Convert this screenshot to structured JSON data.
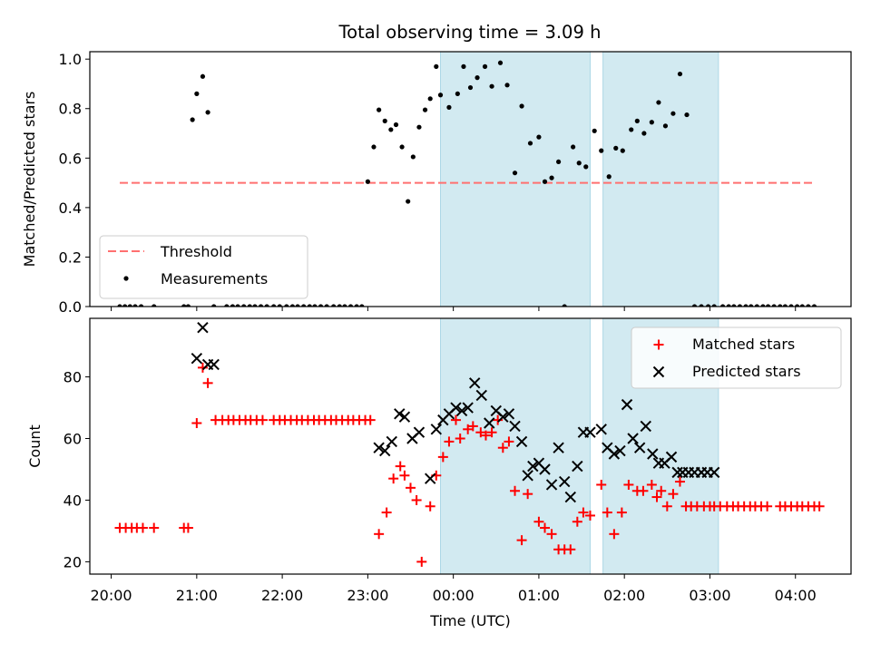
{
  "title": "Total observing time = 3.09 h",
  "colors": {
    "measurement": "#000000",
    "threshold": "#ff7070",
    "matched": "#ff0000",
    "predicted": "#000000",
    "shade": "#add8e6"
  },
  "chart_data": [
    {
      "type": "scatter",
      "ylabel": "Matched/Predicted stars",
      "xlim": [
        -0.25,
        8.65
      ],
      "ylim": [
        0.0,
        1.03
      ],
      "yticks": [
        "0.0",
        "0.2",
        "0.4",
        "0.6",
        "0.8",
        "1.0"
      ],
      "ytick_values": [
        0.0,
        0.2,
        0.4,
        0.6,
        0.8,
        1.0
      ],
      "legend": {
        "placement": "lower-left",
        "entries": [
          {
            "label": "Threshold",
            "style": "dashed-line"
          },
          {
            "label": "Measurements",
            "style": "dot"
          }
        ]
      },
      "threshold": {
        "y": 0.5,
        "x_start": 0.1,
        "x_end": 8.2
      },
      "shaded_regions": [
        [
          3.85,
          5.6
        ],
        [
          5.75,
          7.1
        ]
      ],
      "series": [
        {
          "name": "Measurements",
          "x": [
            0.1,
            0.16,
            0.22,
            0.28,
            0.35,
            0.5,
            0.85,
            0.9,
            0.95,
            1.0,
            1.07,
            1.13,
            1.2,
            1.35,
            1.42,
            1.48,
            1.55,
            1.62,
            1.68,
            1.75,
            1.82,
            1.9,
            1.97,
            2.05,
            2.12,
            2.18,
            2.25,
            2.32,
            2.38,
            2.45,
            2.52,
            2.6,
            2.67,
            2.73,
            2.8,
            2.87,
            2.93,
            3.0,
            3.07,
            3.13,
            3.2,
            3.27,
            3.33,
            3.4,
            3.47,
            3.53,
            3.6,
            3.67,
            3.73,
            3.8,
            3.85,
            3.95,
            4.05,
            4.12,
            4.2,
            4.28,
            4.37,
            4.45,
            4.55,
            4.63,
            4.72,
            4.8,
            4.9,
            5.0,
            5.07,
            5.15,
            5.23,
            5.3,
            5.4,
            5.47,
            5.55,
            5.65,
            5.73,
            5.82,
            5.9,
            5.98,
            6.08,
            6.15,
            6.23,
            6.32,
            6.4,
            6.48,
            6.57,
            6.65,
            6.73,
            6.82,
            6.9,
            6.98,
            7.05,
            7.15,
            7.22,
            7.28,
            7.35,
            7.42,
            7.48,
            7.55,
            7.62,
            7.68,
            7.75,
            7.82,
            7.88,
            7.95,
            8.02,
            8.08,
            8.15,
            8.22
          ],
          "y": [
            0,
            0,
            0,
            0,
            0,
            0,
            0,
            0,
            0.755,
            0.86,
            0.93,
            0.785,
            0,
            0,
            0,
            0,
            0,
            0,
            0,
            0,
            0,
            0,
            0,
            0,
            0,
            0,
            0,
            0,
            0,
            0,
            0,
            0,
            0,
            0,
            0,
            0,
            0,
            0.505,
            0.645,
            0.795,
            0.75,
            0.715,
            0.735,
            0.645,
            0.425,
            0.605,
            0.725,
            0.795,
            0.84,
            0.97,
            0.855,
            0.805,
            0.86,
            0.97,
            0.885,
            0.925,
            0.97,
            0.89,
            0.985,
            0.895,
            0.54,
            0.81,
            0.66,
            0.685,
            0.505,
            0.52,
            0.585,
            0,
            0.645,
            0.58,
            0.565,
            0.71,
            0.63,
            0.525,
            0.64,
            0.63,
            0.715,
            0.75,
            0.7,
            0.745,
            0.825,
            0.73,
            0.78,
            0.94,
            0.775,
            0,
            0,
            0,
            0,
            0,
            0,
            0,
            0,
            0,
            0,
            0,
            0,
            0,
            0,
            0,
            0,
            0,
            0,
            0,
            0,
            0
          ]
        }
      ]
    },
    {
      "type": "scatter",
      "xlabel": "Time (UTC)",
      "ylabel": "Count",
      "xlim": [
        -0.25,
        8.65
      ],
      "ylim": [
        16,
        99
      ],
      "xticks": [
        "20:00",
        "21:00",
        "22:00",
        "23:00",
        "00:00",
        "01:00",
        "02:00",
        "03:00",
        "04:00"
      ],
      "xtick_values": [
        0,
        1,
        2,
        3,
        4,
        5,
        6,
        7,
        8
      ],
      "yticks": [
        "20",
        "40",
        "60",
        "80"
      ],
      "ytick_values": [
        20,
        40,
        60,
        80
      ],
      "legend": {
        "placement": "upper-right",
        "entries": [
          {
            "label": "Matched stars",
            "style": "plus"
          },
          {
            "label": "Predicted stars",
            "style": "x"
          }
        ]
      },
      "shaded_regions": [
        [
          3.85,
          5.6
        ],
        [
          5.75,
          7.1
        ]
      ],
      "series": [
        {
          "name": "Matched stars",
          "x": [
            0.1,
            0.17,
            0.24,
            0.3,
            0.37,
            0.5,
            0.85,
            0.9,
            1.0,
            1.07,
            1.13,
            1.22,
            1.3,
            1.37,
            1.43,
            1.5,
            1.57,
            1.63,
            1.7,
            1.77,
            1.9,
            1.97,
            2.03,
            2.1,
            2.17,
            2.23,
            2.3,
            2.37,
            2.43,
            2.5,
            2.57,
            2.63,
            2.7,
            2.77,
            2.83,
            2.9,
            2.97,
            3.03,
            3.13,
            3.22,
            3.3,
            3.38,
            3.43,
            3.5,
            3.57,
            3.63,
            3.73,
            3.8,
            3.88,
            3.95,
            4.03,
            4.08,
            4.17,
            4.23,
            4.32,
            4.38,
            4.45,
            4.52,
            4.58,
            4.65,
            4.72,
            4.8,
            4.87,
            5.0,
            5.07,
            5.15,
            5.23,
            5.3,
            5.37,
            5.45,
            5.52,
            5.6,
            5.73,
            5.8,
            5.88,
            5.97,
            6.05,
            6.15,
            6.22,
            6.32,
            6.38,
            6.43,
            6.5,
            6.57,
            6.65,
            6.72,
            6.78,
            6.85,
            6.93,
            7.0,
            7.05,
            7.12,
            7.2,
            7.27,
            7.33,
            7.4,
            7.47,
            7.53,
            7.6,
            7.67,
            7.82,
            7.88,
            7.95,
            8.02,
            8.08,
            8.15,
            8.22,
            8.28
          ],
          "y": [
            31,
            31,
            31,
            31,
            31,
            31,
            31,
            31,
            65,
            83,
            78,
            66,
            66,
            66,
            66,
            66,
            66,
            66,
            66,
            66,
            66,
            66,
            66,
            66,
            66,
            66,
            66,
            66,
            66,
            66,
            66,
            66,
            66,
            66,
            66,
            66,
            66,
            66,
            29,
            36,
            47,
            51,
            48,
            44,
            40,
            20,
            38,
            48,
            54,
            59,
            66,
            60,
            63,
            64,
            62,
            61,
            62,
            66,
            57,
            59,
            43,
            27,
            42,
            33,
            31,
            29,
            24,
            24,
            24,
            33,
            36,
            35,
            45,
            36,
            29,
            36,
            45,
            43,
            43,
            45,
            41,
            43,
            38,
            42,
            46,
            38,
            38,
            38,
            38,
            38,
            38,
            38,
            38,
            38,
            38,
            38,
            38,
            38,
            38,
            38,
            38,
            38,
            38,
            38,
            38,
            38,
            38,
            38
          ]
        },
        {
          "name": "Predicted stars",
          "x": [
            1.0,
            1.07,
            1.13,
            1.2,
            3.13,
            3.2,
            3.28,
            3.37,
            3.43,
            3.52,
            3.6,
            3.73,
            3.8,
            3.88,
            3.95,
            4.03,
            4.1,
            4.17,
            4.25,
            4.33,
            4.42,
            4.5,
            4.58,
            4.65,
            4.72,
            4.8,
            4.87,
            4.93,
            5.0,
            5.07,
            5.15,
            5.23,
            5.3,
            5.37,
            5.45,
            5.52,
            5.6,
            5.73,
            5.8,
            5.88,
            5.95,
            6.03,
            6.1,
            6.18,
            6.25,
            6.33,
            6.4,
            6.47,
            6.55,
            6.62,
            6.68,
            6.75,
            6.82,
            6.9,
            6.97,
            7.05
          ],
          "y": [
            86,
            96,
            84,
            84,
            57,
            56,
            59,
            68,
            67,
            60,
            62,
            47,
            63,
            66,
            68,
            70,
            69,
            70,
            78,
            74,
            65,
            69,
            67,
            68,
            64,
            59,
            48,
            51,
            52,
            50,
            45,
            57,
            46,
            41,
            51,
            62,
            62,
            63,
            57,
            55,
            56,
            71,
            60,
            57,
            64,
            55,
            52,
            52,
            54,
            49,
            49,
            49,
            49,
            49,
            49,
            49
          ]
        }
      ]
    }
  ]
}
